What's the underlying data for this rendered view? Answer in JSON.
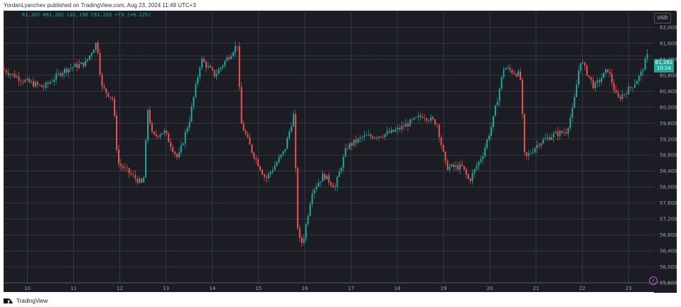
{
  "header": {
    "publisher_line": "YordanLyanchev published on TradingView.com, Aug 23, 2024 11:49 UTC+3"
  },
  "footer": {
    "brand": "TradingView"
  },
  "colors": {
    "background": "#1b1c24",
    "grid": "#3a3d4a",
    "up": "#26a69a",
    "down": "#ef5350",
    "price_tag_bg": "#26a69a",
    "axis_text": "#a0a3ad"
  },
  "price_scale": {
    "currency": "USD",
    "last_price": "61,282",
    "countdown": "10:24"
  },
  "chart_data": {
    "type": "candlestick",
    "title": "",
    "ohlc_readout": "61,207 H61,292 L61,198 C61,282 +73 (+0.12%)",
    "xlabel": "",
    "ylabel": "",
    "ylim": [
      55600,
      62400
    ],
    "y_ticks": [
      "62,000",
      "61,600",
      "61,200",
      "60,800",
      "60,400",
      "60,000",
      "59,600",
      "59,200",
      "58,800",
      "58,400",
      "58,000",
      "57,600",
      "57,200",
      "56,800",
      "56,400",
      "56,000",
      "55,600"
    ],
    "x_ticks": [
      "10",
      "11",
      "12",
      "13",
      "14",
      "15",
      "16",
      "17",
      "18",
      "19",
      "20",
      "21",
      "22",
      "23"
    ],
    "grid": true,
    "path_points": [
      [
        9.5,
        60950
      ],
      [
        10.0,
        60650
      ],
      [
        10.4,
        60500
      ],
      [
        10.8,
        60900
      ],
      [
        11.0,
        61000
      ],
      [
        11.3,
        61100
      ],
      [
        11.55,
        61650
      ],
      [
        11.65,
        60500
      ],
      [
        11.9,
        60200
      ],
      [
        12.0,
        58600
      ],
      [
        12.3,
        58300
      ],
      [
        12.55,
        58050
      ],
      [
        12.65,
        59950
      ],
      [
        12.75,
        59250
      ],
      [
        13.0,
        59400
      ],
      [
        13.3,
        58700
      ],
      [
        13.55,
        59700
      ],
      [
        13.8,
        61200
      ],
      [
        14.1,
        60800
      ],
      [
        14.6,
        61600
      ],
      [
        14.65,
        59650
      ],
      [
        14.9,
        58900
      ],
      [
        15.2,
        58200
      ],
      [
        15.6,
        58900
      ],
      [
        15.8,
        59800
      ],
      [
        15.9,
        56700
      ],
      [
        16.0,
        56600
      ],
      [
        16.2,
        57900
      ],
      [
        16.45,
        58300
      ],
      [
        16.7,
        58000
      ],
      [
        16.95,
        59000
      ],
      [
        17.3,
        59250
      ],
      [
        17.7,
        59300
      ],
      [
        18.0,
        59400
      ],
      [
        18.3,
        59600
      ],
      [
        18.6,
        59800
      ],
      [
        18.9,
        59600
      ],
      [
        19.1,
        58500
      ],
      [
        19.45,
        58500
      ],
      [
        19.6,
        58150
      ],
      [
        19.9,
        58850
      ],
      [
        20.1,
        59600
      ],
      [
        20.35,
        61000
      ],
      [
        20.7,
        60800
      ],
      [
        20.8,
        58700
      ],
      [
        21.1,
        59100
      ],
      [
        21.4,
        59300
      ],
      [
        21.7,
        59400
      ],
      [
        21.85,
        60000
      ],
      [
        22.0,
        61200
      ],
      [
        22.3,
        60500
      ],
      [
        22.6,
        60950
      ],
      [
        22.8,
        60200
      ],
      [
        23.1,
        60500
      ],
      [
        23.3,
        60800
      ],
      [
        23.45,
        61280
      ]
    ]
  }
}
